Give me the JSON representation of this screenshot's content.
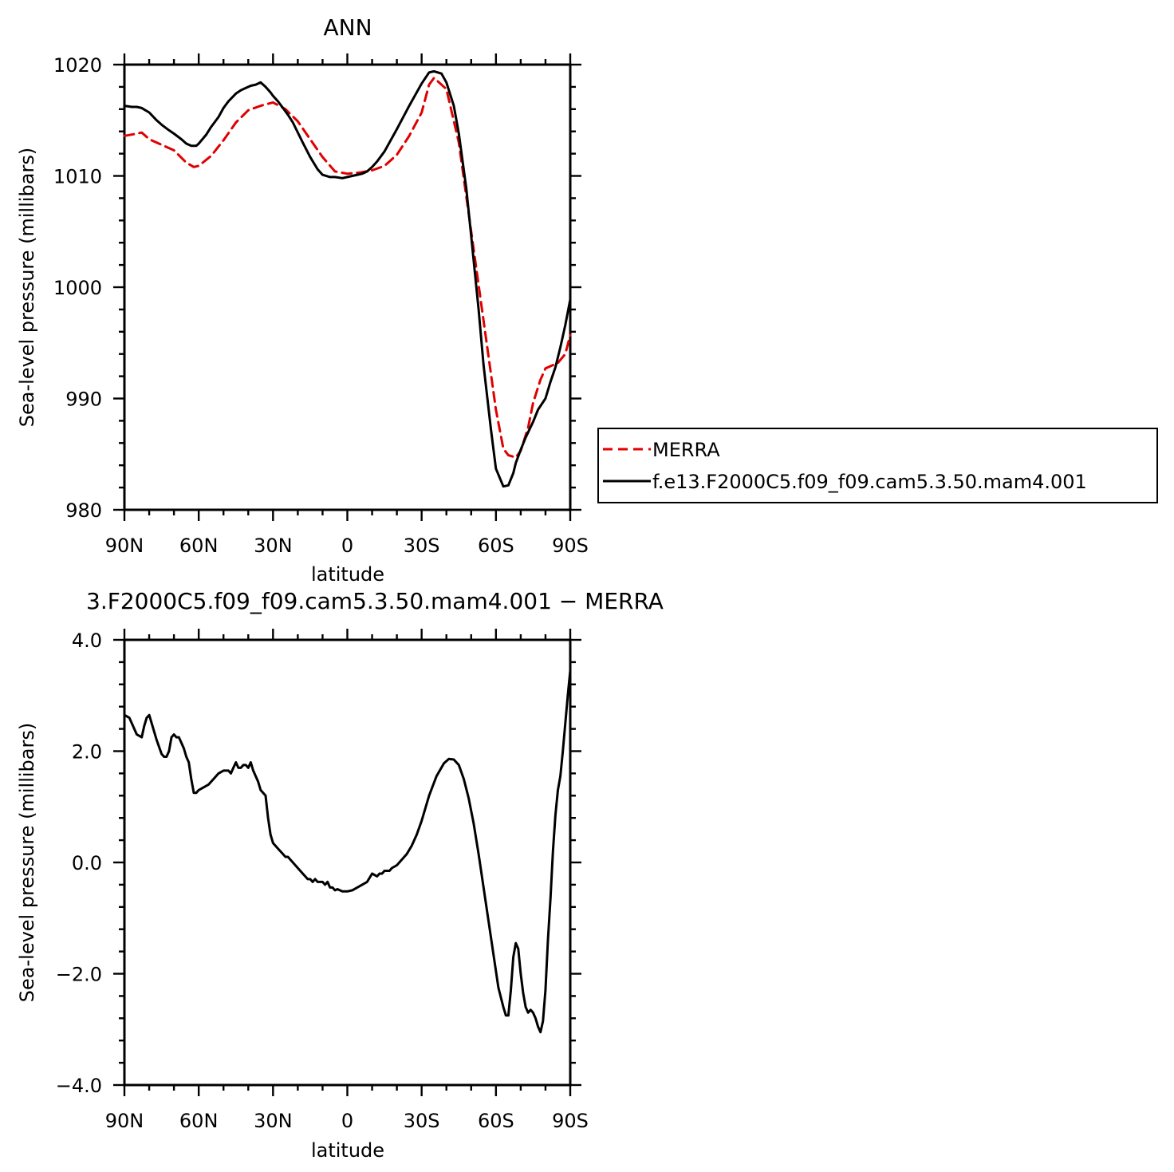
{
  "chart_data": [
    {
      "type": "line",
      "title": "ANN",
      "xlabel": "latitude",
      "ylabel": "Sea-level pressure (millibars)",
      "xlim": [
        90,
        -90
      ],
      "ylim": [
        980,
        1020
      ],
      "x_ticks": [
        90,
        60,
        30,
        0,
        -30,
        -60,
        -90
      ],
      "x_tick_labels": [
        "90N",
        "60N",
        "30N",
        "0",
        "30S",
        "60S",
        "90S"
      ],
      "y_ticks": [
        1020,
        1010,
        1000,
        990,
        980
      ],
      "y_tick_labels": [
        "1020",
        "1010",
        "1000",
        "990",
        "980"
      ],
      "legend_position": "right",
      "series": [
        {
          "name": "MERRA",
          "color": "#e00000",
          "dash": "dashed",
          "x": [
            90,
            85,
            83,
            80,
            75,
            70,
            65,
            62,
            60,
            55,
            50,
            45,
            40,
            35,
            30,
            25,
            20,
            15,
            10,
            5,
            0,
            -5,
            -10,
            -15,
            -20,
            -25,
            -30,
            -33,
            -35,
            -40,
            -45,
            -50,
            -55,
            -60,
            -63,
            -65,
            -68,
            -70,
            -73,
            -75,
            -78,
            -80,
            -83,
            -85,
            -88,
            -90
          ],
          "values": [
            1013.6,
            1013.8,
            1013.9,
            1013.3,
            1012.8,
            1012.3,
            1011.2,
            1010.8,
            1010.9,
            1011.8,
            1013.2,
            1014.8,
            1015.9,
            1016.3,
            1016.6,
            1016.0,
            1014.9,
            1013.3,
            1011.7,
            1010.4,
            1010.2,
            1010.3,
            1010.5,
            1010.9,
            1011.9,
            1013.6,
            1015.7,
            1018.2,
            1018.8,
            1017.8,
            1013.0,
            1005.0,
            997.0,
            989.0,
            985.5,
            984.9,
            984.7,
            985.3,
            987.4,
            989.6,
            991.7,
            992.7,
            993.0,
            993.2,
            994.0,
            995.7
          ]
        },
        {
          "name": "f.e13.F2000C5.f09_f09.cam5.3.50.mam4.001",
          "color": "#000000",
          "dash": "solid",
          "x": [
            90,
            87,
            85,
            83,
            80,
            77,
            75,
            72,
            70,
            67,
            65,
            63,
            61,
            60,
            57,
            55,
            52,
            50,
            48,
            45,
            43,
            41,
            39,
            37,
            35,
            33,
            31,
            30,
            28,
            26,
            24,
            22,
            20,
            18,
            15,
            12,
            10,
            7,
            5,
            2,
            0,
            -2,
            -4,
            -6,
            -8,
            -10,
            -12,
            -15,
            -20,
            -25,
            -30,
            -33,
            -35,
            -38,
            -40,
            -43,
            -45,
            -48,
            -50,
            -53,
            -55,
            -58,
            -60,
            -63,
            -65,
            -67,
            -68,
            -70,
            -72,
            -75,
            -77,
            -80,
            -82,
            -84,
            -86,
            -88,
            -90
          ],
          "values": [
            1016.3,
            1016.2,
            1016.2,
            1016.1,
            1015.7,
            1015.0,
            1014.6,
            1014.1,
            1013.8,
            1013.3,
            1012.9,
            1012.7,
            1012.7,
            1012.9,
            1013.7,
            1014.4,
            1015.3,
            1016.1,
            1016.7,
            1017.4,
            1017.7,
            1017.9,
            1018.1,
            1018.2,
            1018.4,
            1018.0,
            1017.5,
            1017.2,
            1016.7,
            1016.1,
            1015.5,
            1014.8,
            1013.9,
            1013.0,
            1011.7,
            1010.6,
            1010.1,
            1009.9,
            1009.9,
            1009.8,
            1009.9,
            1010.0,
            1010.1,
            1010.2,
            1010.4,
            1010.8,
            1011.3,
            1012.2,
            1014.2,
            1016.3,
            1018.3,
            1019.3,
            1019.4,
            1019.2,
            1018.4,
            1016.3,
            1013.8,
            1008.9,
            1004.6,
            998.0,
            993.0,
            987.2,
            983.7,
            982.1,
            982.2,
            983.3,
            984.2,
            985.4,
            986.5,
            987.9,
            989.0,
            990.0,
            991.5,
            992.8,
            994.6,
            996.6,
            998.9
          ]
        }
      ]
    },
    {
      "type": "line",
      "title": "3.F2000C5.f09_f09.cam5.3.50.mam4.001 − MERRA",
      "xlabel": "latitude",
      "ylabel": "Sea-level pressure (millibars)",
      "xlim": [
        90,
        -90
      ],
      "ylim": [
        -4,
        4
      ],
      "x_ticks": [
        90,
        60,
        30,
        0,
        -30,
        -60,
        -90
      ],
      "x_tick_labels": [
        "90N",
        "60N",
        "30N",
        "0",
        "30S",
        "60S",
        "90S"
      ],
      "y_ticks": [
        4,
        2,
        0,
        -2,
        -4
      ],
      "y_tick_labels": [
        "4.0",
        "2.0",
        "0.0",
        "−2.0",
        "−4.0"
      ],
      "series": [
        {
          "color": "#000000",
          "dash": "solid",
          "x": [
            90,
            88,
            86,
            85,
            83,
            82,
            81,
            80,
            78,
            77,
            75,
            74,
            73,
            72,
            71,
            70,
            69,
            68,
            67,
            66,
            65,
            64,
            63,
            62,
            61,
            60,
            58,
            56,
            54,
            52,
            50,
            48,
            47,
            46,
            45,
            44,
            43,
            42,
            41,
            40,
            39,
            38,
            37,
            36,
            35,
            34,
            33,
            32,
            31,
            30,
            29,
            28,
            27,
            26,
            25,
            24,
            23,
            22,
            21,
            20,
            19,
            18,
            17,
            16,
            15,
            14,
            13,
            12,
            11,
            10,
            9,
            8,
            7,
            6,
            5,
            4,
            3,
            2,
            1,
            0,
            -2,
            -4,
            -6,
            -8,
            -10,
            -12,
            -13,
            -14,
            -15,
            -16,
            -17,
            -18,
            -20,
            -22,
            -24,
            -26,
            -28,
            -30,
            -33,
            -36,
            -39,
            -41,
            -43,
            -45,
            -47,
            -49,
            -51,
            -53,
            -55,
            -57,
            -59,
            -61,
            -63,
            -64,
            -65,
            -66,
            -67,
            -68,
            -69,
            -70,
            -71,
            -72,
            -73,
            -74,
            -75,
            -76,
            -77,
            -78,
            -79,
            -80,
            -81,
            -82,
            -83,
            -84,
            -85,
            -86,
            -87,
            -88,
            -89,
            -90
          ],
          "values": [
            2.65,
            2.6,
            2.4,
            2.3,
            2.25,
            2.45,
            2.6,
            2.65,
            2.35,
            2.2,
            1.95,
            1.9,
            1.9,
            2.0,
            2.25,
            2.3,
            2.25,
            2.25,
            2.15,
            2.05,
            1.9,
            1.8,
            1.5,
            1.25,
            1.25,
            1.3,
            1.35,
            1.4,
            1.5,
            1.6,
            1.65,
            1.65,
            1.6,
            1.7,
            1.8,
            1.7,
            1.7,
            1.75,
            1.75,
            1.7,
            1.8,
            1.65,
            1.55,
            1.45,
            1.3,
            1.25,
            1.2,
            0.8,
            0.5,
            0.35,
            0.3,
            0.25,
            0.2,
            0.15,
            0.1,
            0.1,
            0.05,
            0.0,
            -0.05,
            -0.1,
            -0.15,
            -0.2,
            -0.25,
            -0.3,
            -0.3,
            -0.35,
            -0.3,
            -0.35,
            -0.35,
            -0.35,
            -0.4,
            -0.35,
            -0.45,
            -0.45,
            -0.5,
            -0.48,
            -0.5,
            -0.52,
            -0.52,
            -0.52,
            -0.5,
            -0.45,
            -0.4,
            -0.35,
            -0.2,
            -0.25,
            -0.2,
            -0.2,
            -0.15,
            -0.15,
            -0.15,
            -0.1,
            -0.05,
            0.05,
            0.15,
            0.3,
            0.5,
            0.75,
            1.2,
            1.55,
            1.78,
            1.86,
            1.85,
            1.75,
            1.5,
            1.15,
            0.7,
            0.15,
            -0.45,
            -1.05,
            -1.65,
            -2.25,
            -2.6,
            -2.75,
            -2.75,
            -2.3,
            -1.7,
            -1.45,
            -1.55,
            -2.0,
            -2.35,
            -2.6,
            -2.7,
            -2.65,
            -2.7,
            -2.8,
            -2.95,
            -3.05,
            -2.85,
            -2.3,
            -1.4,
            -0.65,
            0.2,
            0.85,
            1.3,
            1.55,
            2.0,
            2.5,
            3.0,
            3.45
          ]
        }
      ]
    }
  ]
}
